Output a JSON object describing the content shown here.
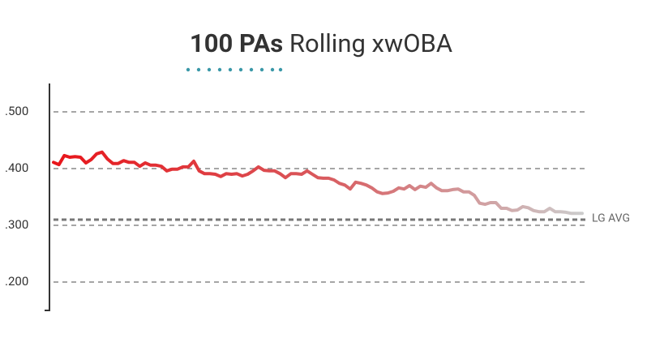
{
  "chart_data": {
    "type": "line",
    "title": {
      "emphasis": "100 PAs",
      "rest": "Rolling xwOBA"
    },
    "values": [
      0.411,
      0.407,
      0.423,
      0.42,
      0.421,
      0.42,
      0.41,
      0.416,
      0.426,
      0.429,
      0.417,
      0.409,
      0.409,
      0.414,
      0.411,
      0.411,
      0.404,
      0.41,
      0.406,
      0.406,
      0.404,
      0.396,
      0.399,
      0.399,
      0.403,
      0.403,
      0.413,
      0.396,
      0.391,
      0.391,
      0.39,
      0.386,
      0.391,
      0.39,
      0.391,
      0.387,
      0.39,
      0.396,
      0.403,
      0.397,
      0.396,
      0.396,
      0.391,
      0.384,
      0.391,
      0.391,
      0.39,
      0.396,
      0.39,
      0.384,
      0.383,
      0.383,
      0.38,
      0.374,
      0.371,
      0.364,
      0.376,
      0.374,
      0.371,
      0.366,
      0.359,
      0.356,
      0.357,
      0.36,
      0.366,
      0.364,
      0.37,
      0.363,
      0.369,
      0.367,
      0.374,
      0.366,
      0.361,
      0.361,
      0.363,
      0.364,
      0.359,
      0.359,
      0.353,
      0.339,
      0.337,
      0.34,
      0.34,
      0.33,
      0.33,
      0.326,
      0.327,
      0.333,
      0.331,
      0.326,
      0.324,
      0.324,
      0.33,
      0.324,
      0.324,
      0.323,
      0.321,
      0.321,
      0.321
    ],
    "colors": [
      "#e8151a",
      "#d9585c",
      "#cccccc"
    ],
    "ylim": [
      0.15,
      0.55
    ],
    "yticks": [
      {
        "value": 0.5,
        "label": ".500"
      },
      {
        "value": 0.4,
        "label": ".400"
      },
      {
        "value": 0.3,
        "label": ".300"
      },
      {
        "value": 0.2,
        "label": ".200"
      }
    ],
    "grid": true,
    "reference_line": {
      "value": 0.31,
      "label": "LG AVG"
    }
  }
}
